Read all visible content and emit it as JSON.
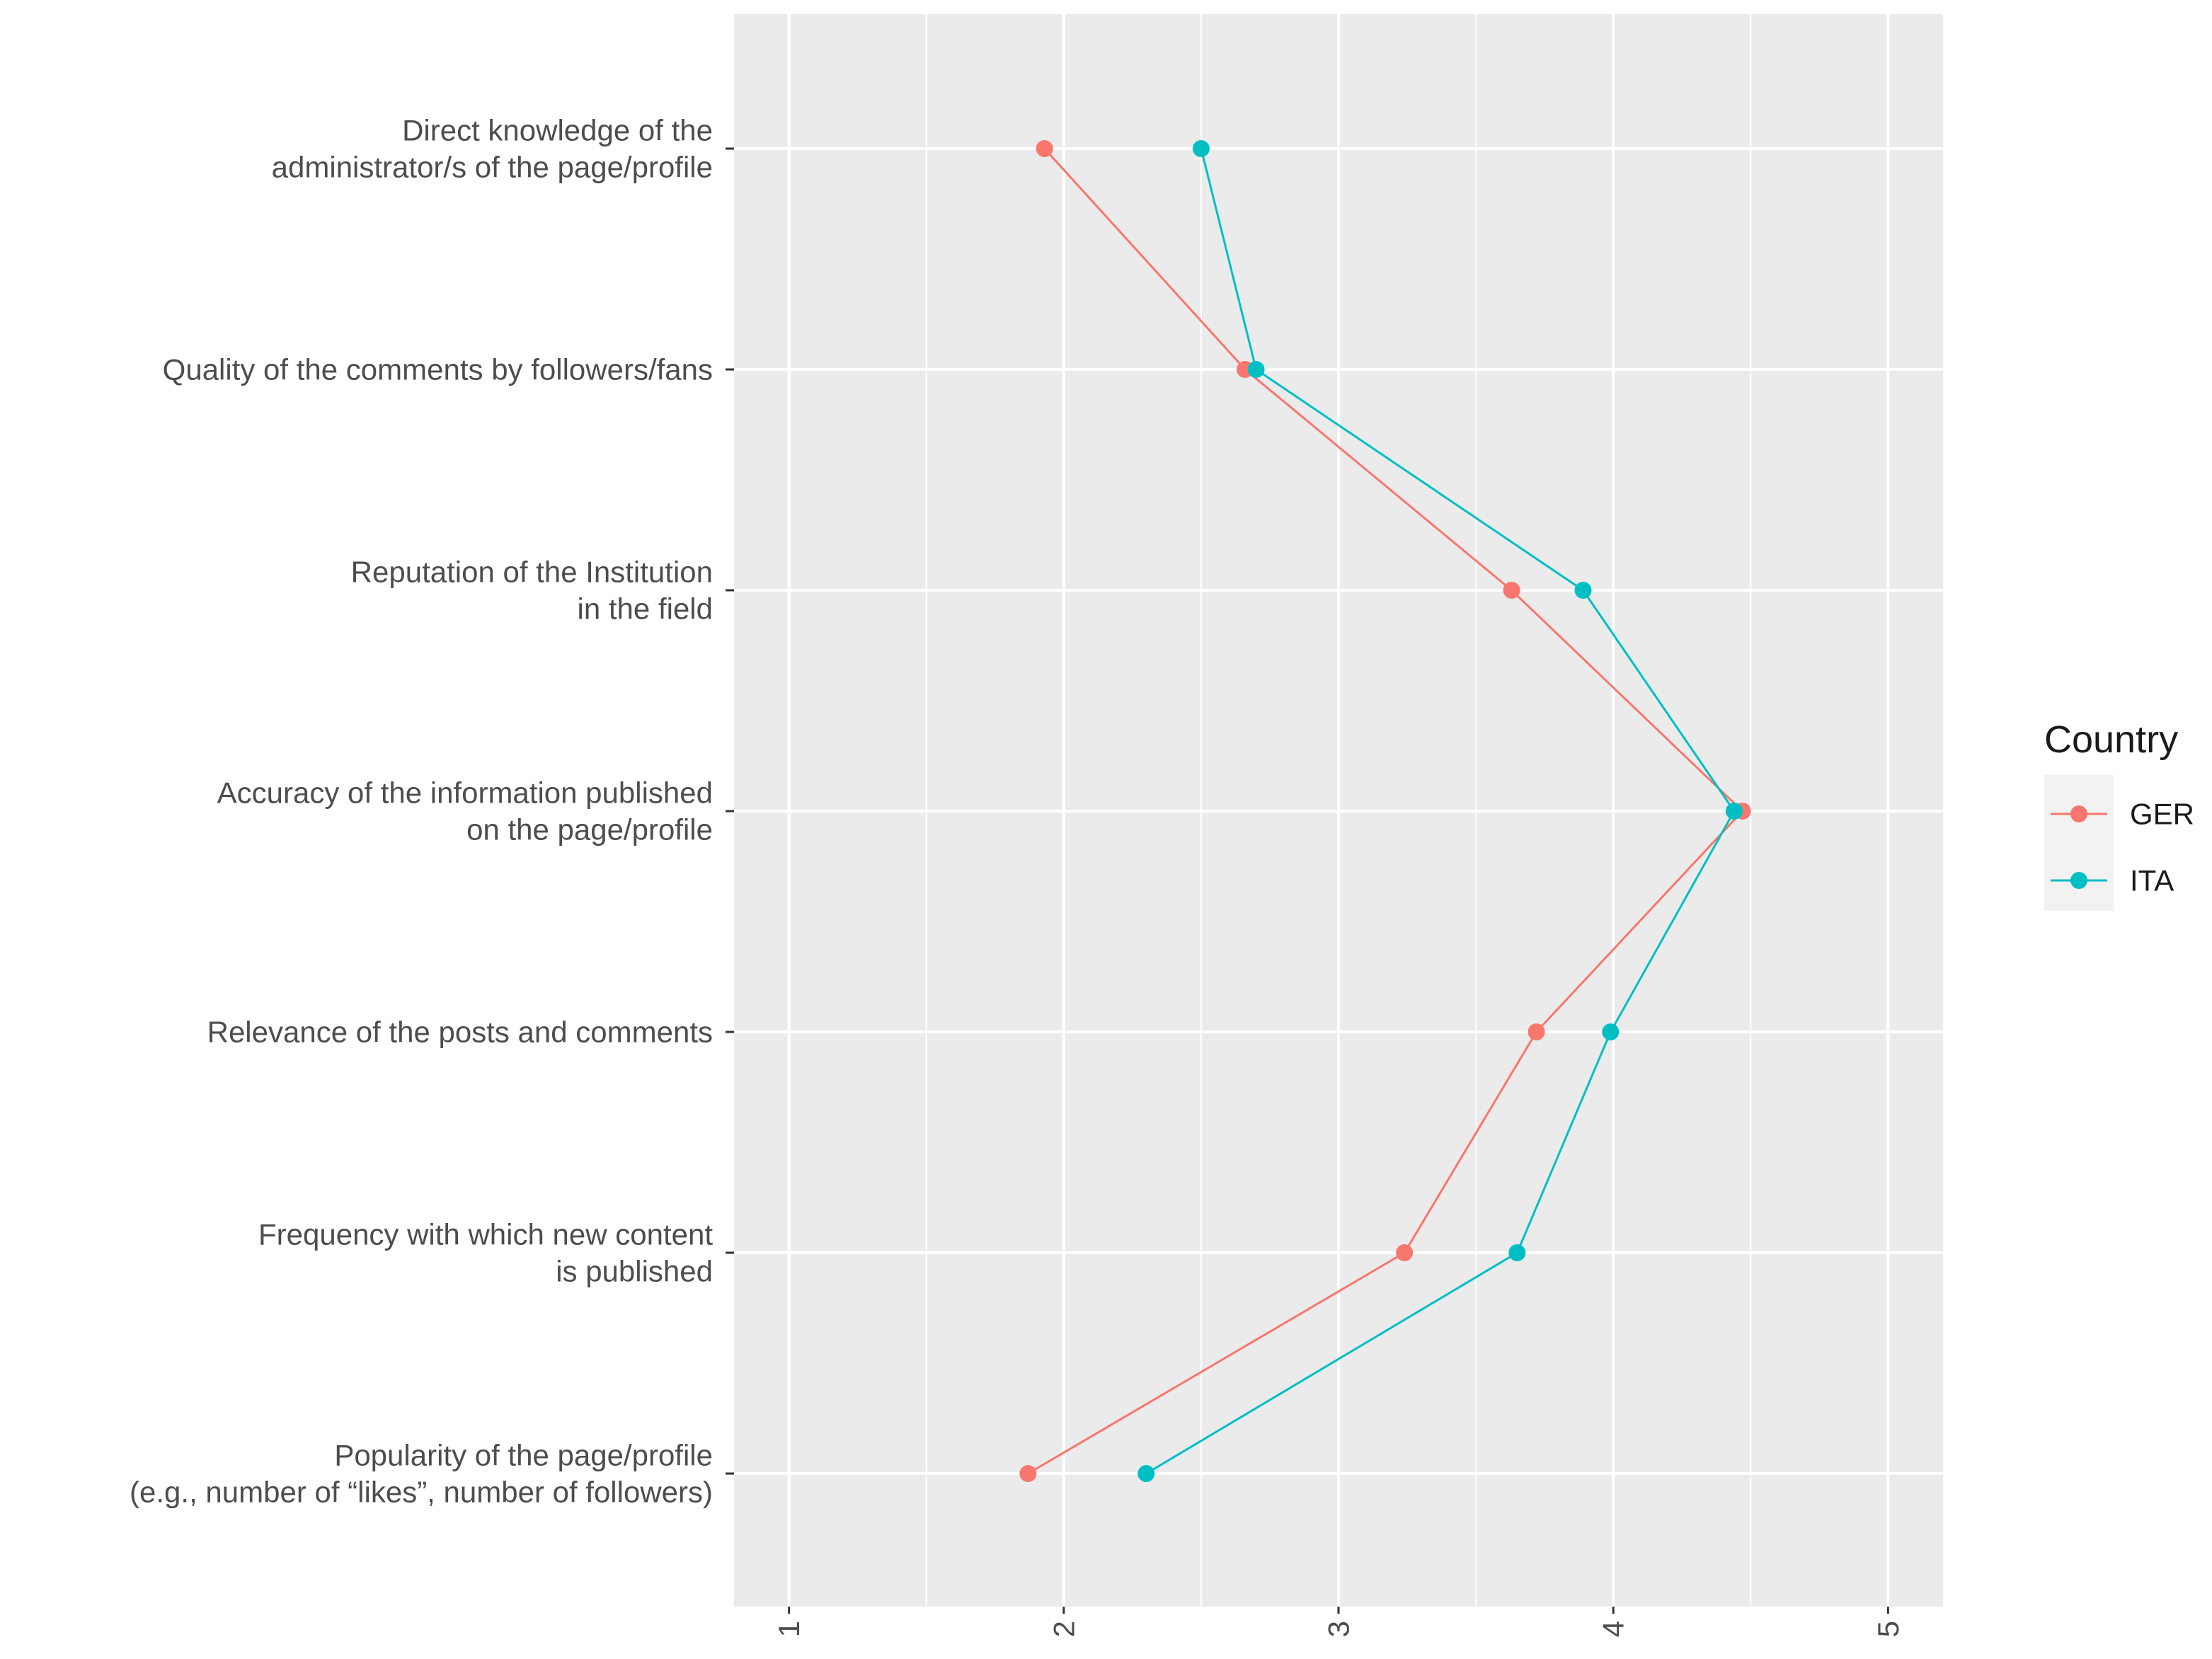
{
  "chart_data": {
    "type": "line",
    "title": "",
    "xlabel": "",
    "ylabel": "",
    "xlim": [
      0.8,
      5.2
    ],
    "x_ticks": [
      "1",
      "2",
      "3",
      "4",
      "5"
    ],
    "categories": [
      [
        "Direct knowledge of the",
        "administrator/s of the page/profile"
      ],
      [
        "Quality of the comments by followers/fans"
      ],
      [
        "Reputation of the Institution",
        "in the field"
      ],
      [
        "Accuracy of the information published",
        "on the page/profile"
      ],
      [
        "Relevance of the posts and comments"
      ],
      [
        "Frequency with which new content",
        "is published"
      ],
      [
        "Popularity of the page/profile",
        "(e.g., number of “likes”, number of followers)"
      ]
    ],
    "series": [
      {
        "name": "GER",
        "color": "#F8766D",
        "values": [
          1.93,
          2.66,
          3.63,
          4.47,
          3.72,
          3.24,
          1.87
        ]
      },
      {
        "name": "ITA",
        "color": "#00BFC4",
        "values": [
          2.5,
          2.7,
          3.89,
          4.44,
          3.99,
          3.65,
          2.3
        ]
      }
    ],
    "legend": {
      "title": "Country",
      "position": "right"
    },
    "grid": true
  }
}
